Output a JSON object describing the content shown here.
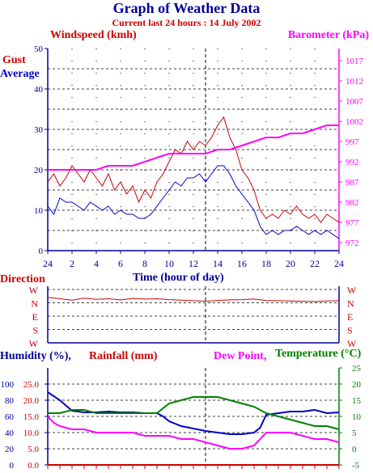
{
  "header": {
    "title": "Graph of Weather Data",
    "subtitle": "Current last 24 hours : 14 July 2002"
  },
  "colors": {
    "navy": "#000099",
    "red": "#cc0000",
    "blue": "#0000cc",
    "magenta": "#ff00ff",
    "green": "#008000",
    "grid": "#000000"
  },
  "chart_data": [
    {
      "type": "line",
      "labels": {
        "left_title": "Windspeed (kmh)",
        "left_series_1": "Gust",
        "left_series_2": "Average",
        "right_title": "Barometer (kPa)",
        "xlabel": "Time (hour of day)"
      },
      "x_ticks": [
        "24",
        "2",
        "4",
        "6",
        "8",
        "10",
        "12",
        "14",
        "16",
        "18",
        "20",
        "22",
        "24"
      ],
      "y_left_ticks": [
        "0",
        "10",
        "20",
        "30",
        "40",
        "50"
      ],
      "y_right_ticks": [
        "972",
        "977",
        "982",
        "987",
        "992",
        "997",
        "1002",
        "1007",
        "1012",
        "1017"
      ],
      "ylim_left": [
        0,
        50
      ],
      "ylim_right": [
        970,
        1020
      ],
      "xlim": [
        0,
        24
      ],
      "current_time_marker": 13,
      "series": [
        {
          "name": "Gust",
          "axis": "left",
          "color": "#cc0000",
          "x": [
            0,
            0.5,
            1,
            1.5,
            2,
            2.5,
            3,
            3.5,
            4,
            4.5,
            5,
            5.5,
            6,
            6.5,
            7,
            7.5,
            8,
            8.5,
            9,
            9.5,
            10,
            10.5,
            11,
            11.5,
            12,
            12.5,
            13,
            13.5,
            14,
            14.5,
            15,
            15.5,
            16,
            16.5,
            17,
            17.5,
            18,
            18.5,
            19,
            19.5,
            20,
            20.5,
            21,
            21.5,
            22,
            22.5,
            23,
            23.5,
            24
          ],
          "values": [
            17,
            19,
            16,
            18,
            21,
            19,
            17,
            20,
            18,
            16,
            19,
            15,
            17,
            14,
            16,
            12,
            15,
            13,
            17,
            19,
            22,
            25,
            24,
            27,
            25,
            27,
            26,
            28,
            31,
            33,
            28,
            25,
            20,
            18,
            15,
            10,
            8,
            9,
            8,
            10,
            9,
            11,
            9,
            8,
            9,
            7,
            9,
            8,
            7
          ]
        },
        {
          "name": "Average",
          "axis": "left",
          "color": "#0000cc",
          "x": [
            0,
            0.5,
            1,
            1.5,
            2,
            2.5,
            3,
            3.5,
            4,
            4.5,
            5,
            5.5,
            6,
            6.5,
            7,
            7.5,
            8,
            8.5,
            9,
            9.5,
            10,
            10.5,
            11,
            11.5,
            12,
            12.5,
            13,
            13.5,
            14,
            14.5,
            15,
            15.5,
            16,
            16.5,
            17,
            17.5,
            18,
            18.5,
            19,
            19.5,
            20,
            20.5,
            21,
            21.5,
            22,
            22.5,
            23,
            23.5,
            24
          ],
          "values": [
            11,
            9,
            13,
            12,
            12,
            11,
            10,
            12,
            11,
            10,
            11,
            9,
            10,
            9,
            9,
            8,
            8,
            9,
            11,
            13,
            15,
            17,
            16,
            18,
            18,
            19,
            17,
            19,
            21,
            21,
            19,
            16,
            14,
            12,
            10,
            6,
            4,
            5,
            4,
            5,
            5,
            6,
            5,
            4,
            5,
            4,
            5,
            4,
            3
          ]
        },
        {
          "name": "Barometer",
          "axis": "right",
          "color": "#ff00ff",
          "x": [
            0,
            2,
            4,
            5,
            7,
            8,
            9,
            10,
            11,
            12,
            13,
            14,
            15,
            16,
            17,
            18,
            19,
            20,
            21,
            22,
            23,
            24
          ],
          "values": [
            990,
            990,
            990,
            991,
            991,
            992,
            993,
            994,
            994,
            994,
            994,
            995,
            995,
            996,
            997,
            998,
            998,
            999,
            999,
            1000,
            1001,
            1001
          ]
        }
      ]
    },
    {
      "type": "line",
      "labels": {
        "left_title": "Direction"
      },
      "x_ticks": [
        "24",
        "2",
        "4",
        "6",
        "8",
        "10",
        "12",
        "14",
        "16",
        "18",
        "20",
        "22",
        "24"
      ],
      "y_ticks": [
        "N",
        "W",
        "S",
        "E",
        "N",
        "W"
      ],
      "xlim": [
        0,
        24
      ],
      "ylim": [
        0,
        360
      ],
      "series": [
        {
          "color": "#cc0000",
          "x": [
            0,
            1,
            2,
            3,
            4,
            5,
            6,
            7,
            8,
            9,
            10,
            11,
            12,
            13,
            14,
            15,
            16,
            17,
            18,
            19,
            20,
            21,
            22,
            23,
            24
          ],
          "values": [
            355,
            350,
            345,
            352,
            348,
            350,
            346,
            351,
            349,
            350,
            347,
            345,
            343,
            341,
            344,
            346,
            347,
            349,
            344,
            343,
            342,
            341,
            340,
            342,
            343
          ]
        }
      ]
    },
    {
      "type": "line",
      "labels": {
        "humidity": "Humidity (%),",
        "rainfall": "Rainfall (mm)",
        "dew_point": "Dew Point,",
        "temperature": "Temperature (°C)"
      },
      "x_ticks": [
        "24",
        "2",
        "4",
        "6",
        "8",
        "10",
        "12",
        "14",
        "16",
        "18",
        "20",
        "22",
        "24"
      ],
      "y_humidity_ticks": [
        "0",
        "20",
        "40",
        "60",
        "80",
        "100"
      ],
      "y_rainfall_ticks": [
        "0.0",
        "5.0",
        "10.0",
        "15.0",
        "20.0",
        "25.0"
      ],
      "y_temp_ticks": [
        "-5",
        "0",
        "5",
        "10",
        "15",
        "20",
        "25"
      ],
      "ylim_humidity": [
        0,
        120
      ],
      "ylim_temp": [
        -5,
        25
      ],
      "xlim": [
        0,
        24
      ],
      "series": [
        {
          "name": "Humidity",
          "axis": "humidity",
          "color": "#0000cc",
          "x": [
            0,
            1,
            2,
            3,
            4,
            5,
            6,
            7,
            8,
            9,
            9.5,
            10,
            11,
            12,
            13,
            14,
            15,
            16,
            17,
            17.5,
            18,
            19,
            20,
            21,
            22,
            23,
            24
          ],
          "values": [
            90,
            80,
            67,
            65,
            65,
            66,
            65,
            65,
            64,
            64,
            60,
            54,
            48,
            45,
            42,
            40,
            38,
            38,
            40,
            46,
            62,
            64,
            66,
            66,
            68,
            64,
            65
          ]
        },
        {
          "name": "Rainfall",
          "axis": "humidity",
          "color": "#cc0000",
          "x": [
            0,
            24
          ],
          "values": [
            0,
            0
          ]
        },
        {
          "name": "Temperature",
          "axis": "temp",
          "color": "#008000",
          "x": [
            0,
            1,
            2,
            3,
            4,
            5,
            6,
            7,
            8,
            9,
            10,
            11,
            12,
            13,
            14,
            15,
            16,
            17,
            18,
            19,
            20,
            21,
            22,
            23,
            24
          ],
          "values": [
            11,
            11,
            12,
            12,
            11,
            11,
            11,
            11,
            11,
            11,
            14,
            15,
            16,
            16,
            16,
            15,
            14,
            13,
            11,
            10,
            9,
            8,
            7,
            7,
            6
          ]
        },
        {
          "name": "Dew Point",
          "axis": "temp",
          "color": "#ff00ff",
          "x": [
            0,
            0.5,
            1,
            2,
            3,
            4,
            5,
            6,
            7,
            8,
            9,
            10,
            11,
            12,
            13,
            14,
            15,
            16,
            17,
            17.5,
            18,
            19,
            20,
            21,
            22,
            23,
            24
          ],
          "values": [
            10,
            8,
            7,
            6,
            6,
            5,
            5,
            5,
            5,
            4,
            4,
            4,
            3,
            3,
            2,
            1,
            0,
            0,
            1,
            3,
            5,
            5,
            5,
            4,
            3,
            3,
            2
          ]
        }
      ]
    }
  ]
}
